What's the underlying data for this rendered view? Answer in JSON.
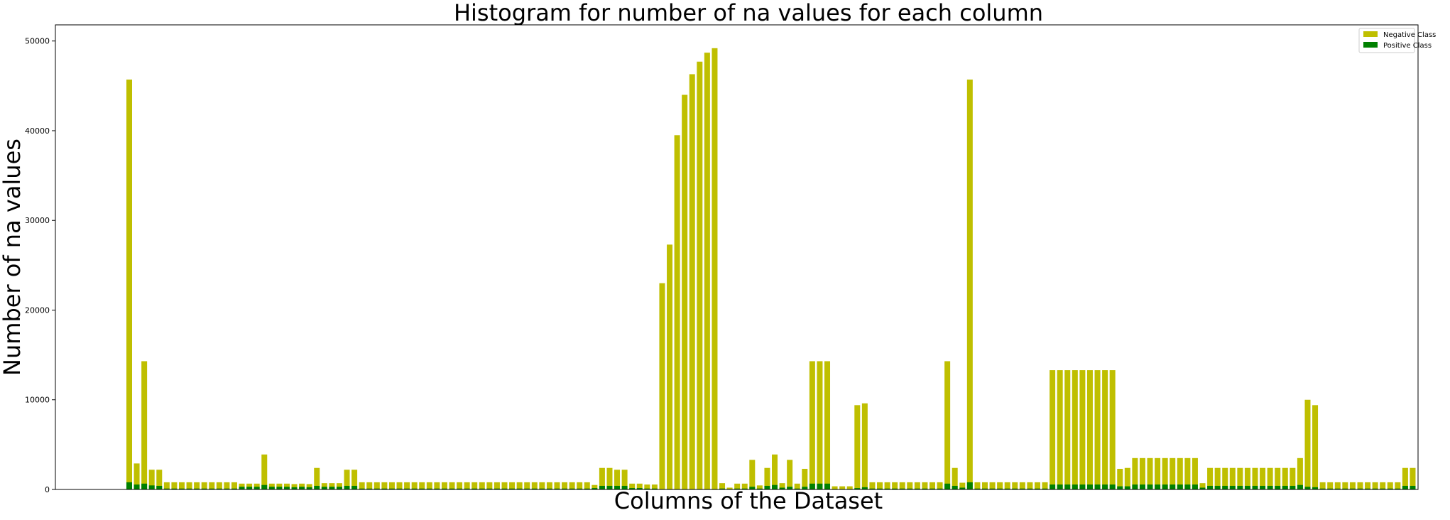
{
  "chart_data": {
    "type": "bar",
    "stacked": true,
    "title": "Histogram for number of na values for each column",
    "xlabel": "Columns of the Dataset",
    "ylabel": "Number of na values",
    "ylim": [
      0,
      51800
    ],
    "yticks": [
      0,
      10000,
      20000,
      30000,
      40000,
      50000
    ],
    "ytick_labels": [
      "0",
      "10000",
      "20000",
      "30000",
      "40000",
      "50000"
    ],
    "xticks_visible": false,
    "grid": false,
    "legend_position": "top-right",
    "colors": {
      "negative": "#bfbf00",
      "positive": "#008000"
    },
    "series": [
      {
        "name": "Negative Class",
        "values": [
          45700,
          2900,
          14300,
          2200,
          2200,
          800,
          800,
          800,
          800,
          800,
          800,
          800,
          800,
          800,
          800,
          650,
          650,
          650,
          3900,
          650,
          650,
          650,
          600,
          650,
          600,
          2400,
          700,
          700,
          700,
          2200,
          2200,
          800,
          800,
          800,
          800,
          800,
          800,
          800,
          800,
          800,
          800,
          800,
          800,
          800,
          800,
          800,
          800,
          800,
          800,
          800,
          800,
          800,
          800,
          800,
          800,
          800,
          800,
          800,
          800,
          800,
          800,
          800,
          500,
          2400,
          2400,
          2200,
          2200,
          650,
          650,
          550,
          550,
          23000,
          27300,
          39500,
          44000,
          46300,
          47700,
          48700,
          49200,
          700,
          200,
          650,
          650,
          3300,
          450,
          2400,
          3900,
          700,
          3300,
          650,
          2300,
          14300,
          14300,
          14300,
          350,
          350,
          350,
          9400,
          9600,
          800,
          800,
          800,
          800,
          800,
          800,
          800,
          800,
          800,
          800,
          14300,
          2400,
          750,
          45700,
          800,
          800,
          800,
          800,
          800,
          800,
          800,
          800,
          800,
          800,
          13300,
          13300,
          13300,
          13300,
          13300,
          13300,
          13300,
          13300,
          13300,
          2300,
          2400,
          3500,
          3500,
          3500,
          3500,
          3500,
          3500,
          3500,
          3500,
          3500,
          700,
          2400,
          2400,
          2400,
          2400,
          2400,
          2400,
          2400,
          2400,
          2400,
          2400,
          2400,
          2400,
          3500,
          10000,
          9400,
          800,
          800,
          800,
          800,
          800,
          800,
          800,
          800,
          800,
          800,
          800,
          2400,
          2400
        ]
      },
      {
        "name": "Positive Class",
        "values": [
          800,
          550,
          650,
          450,
          400,
          100,
          100,
          100,
          100,
          100,
          100,
          100,
          100,
          100,
          100,
          300,
          300,
          300,
          500,
          300,
          300,
          300,
          250,
          300,
          250,
          400,
          300,
          300,
          300,
          400,
          400,
          100,
          100,
          100,
          100,
          100,
          100,
          100,
          100,
          100,
          100,
          100,
          100,
          100,
          100,
          100,
          100,
          100,
          100,
          100,
          100,
          100,
          100,
          100,
          100,
          100,
          100,
          100,
          100,
          100,
          100,
          100,
          150,
          400,
          400,
          400,
          400,
          150,
          150,
          100,
          100,
          50,
          50,
          50,
          50,
          50,
          50,
          50,
          50,
          100,
          50,
          100,
          100,
          300,
          100,
          400,
          500,
          200,
          300,
          100,
          300,
          650,
          650,
          650,
          50,
          50,
          50,
          150,
          250,
          100,
          100,
          100,
          100,
          100,
          100,
          100,
          100,
          100,
          100,
          650,
          400,
          200,
          800,
          100,
          100,
          100,
          100,
          100,
          100,
          100,
          100,
          100,
          100,
          550,
          550,
          550,
          550,
          550,
          550,
          550,
          550,
          550,
          350,
          350,
          550,
          550,
          550,
          550,
          550,
          550,
          550,
          550,
          550,
          200,
          400,
          400,
          400,
          400,
          400,
          400,
          400,
          400,
          400,
          400,
          400,
          400,
          500,
          300,
          250,
          100,
          100,
          100,
          100,
          100,
          100,
          100,
          100,
          100,
          100,
          100,
          400,
          400
        ]
      }
    ]
  }
}
